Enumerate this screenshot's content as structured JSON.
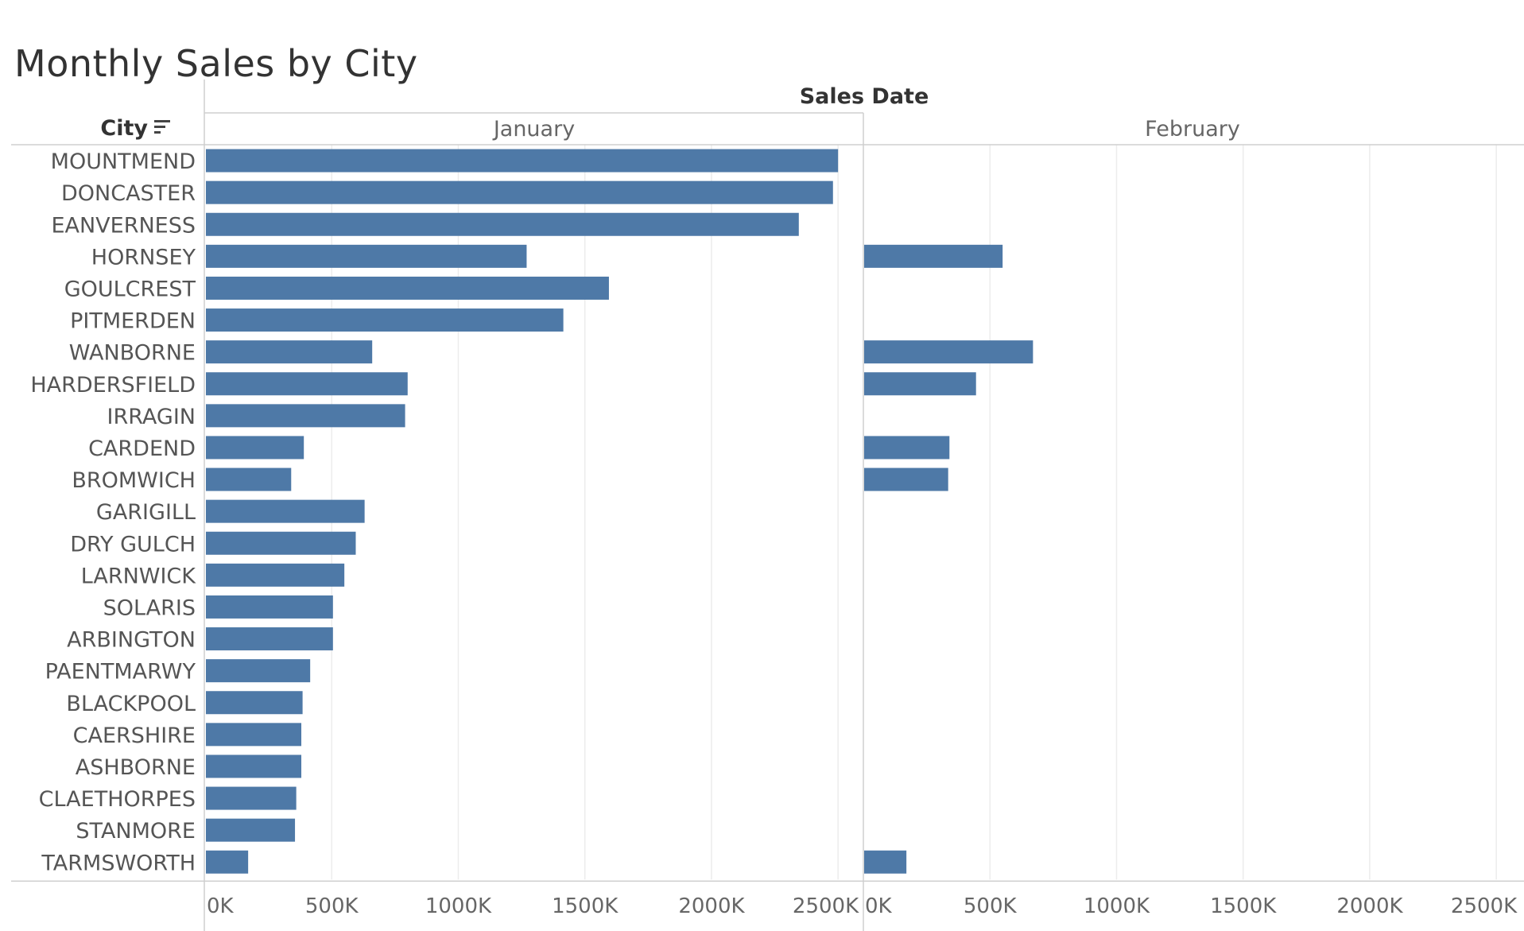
{
  "title": "Monthly Sales by City",
  "chart_data": {
    "type": "bar",
    "orientation": "horizontal",
    "column_header": "Sales Date",
    "row_header": "City",
    "sort_icon": "sort-descending-icon",
    "bar_color": "#4e79a7",
    "xlim": [
      0,
      2600000
    ],
    "x_ticks": [
      0,
      500000,
      1000000,
      1500000,
      2000000,
      2500000
    ],
    "x_tick_labels": [
      "0K",
      "500K",
      "1000K",
      "1500K",
      "2000K",
      "2500K"
    ],
    "grid": true,
    "categories": [
      "MOUNTMEND",
      "DONCASTER",
      "EANVERNESS",
      "HORNSEY",
      "GOULCREST",
      "PITMERDEN",
      "WANBORNE",
      "HARDERSFIELD",
      "IRRAGIN",
      "CARDEND",
      "BROMWICH",
      "GARIGILL",
      "DRY GULCH",
      "LARNWICK",
      "SOLARIS",
      "ARBINGTON",
      "PAENTMARWY",
      "BLACKPOOL",
      "CAERSHIRE",
      "ASHBORNE",
      "CLAETHORPES",
      "STANMORE",
      "TARMSWORTH"
    ],
    "series": [
      {
        "name": "January",
        "values": [
          2500000,
          2480000,
          2345000,
          1270000,
          1595000,
          1415000,
          660000,
          800000,
          790000,
          390000,
          340000,
          630000,
          595000,
          550000,
          505000,
          505000,
          415000,
          385000,
          380000,
          380000,
          360000,
          355000,
          170000
        ]
      },
      {
        "name": "February",
        "values": [
          null,
          null,
          null,
          550000,
          null,
          null,
          670000,
          445000,
          null,
          340000,
          335000,
          null,
          null,
          null,
          null,
          null,
          null,
          null,
          null,
          null,
          null,
          null,
          170000
        ]
      }
    ]
  }
}
